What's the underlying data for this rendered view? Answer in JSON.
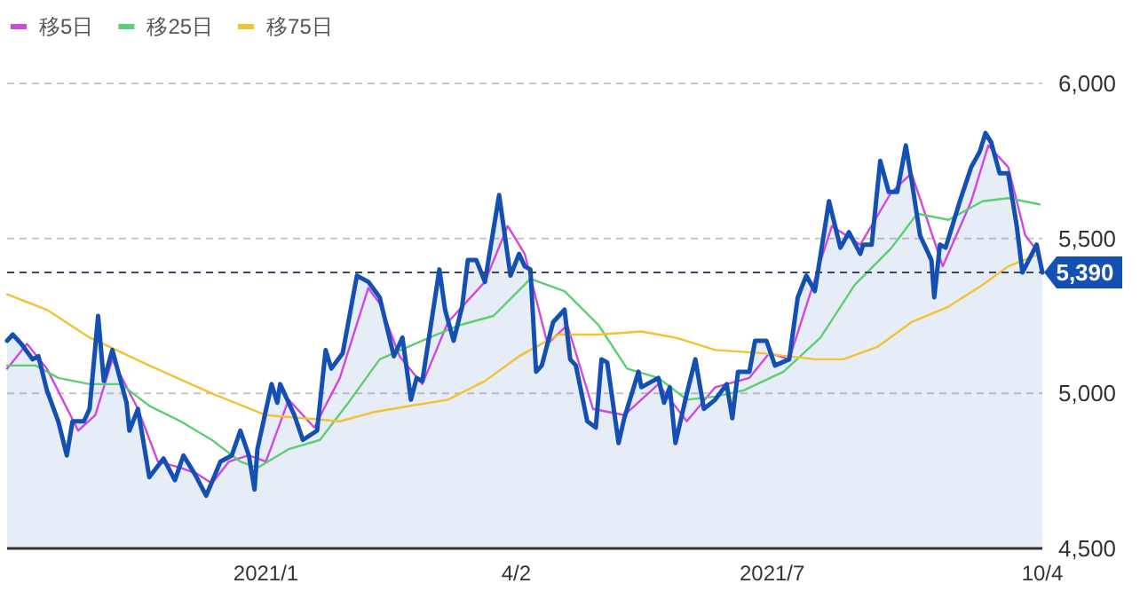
{
  "chart_data": {
    "type": "line",
    "grid": "y",
    "legend": "top left",
    "xlim": [
      "2020-10-05",
      "2021-10-04"
    ],
    "xticks": [
      {
        "value": "2021-01-04",
        "label": "2021/1"
      },
      {
        "value": "2021-04-02",
        "label": "4/2"
      },
      {
        "value": "2021-07-01",
        "label": "2021/7"
      },
      {
        "value": "2021-10-04",
        "label": "10/4"
      }
    ],
    "ylim": [
      4500,
      6000
    ],
    "yticks": [
      {
        "value": 4500,
        "label": "4,500"
      },
      {
        "value": 5000,
        "label": "5,000"
      },
      {
        "value": 5500,
        "label": "5,500"
      },
      {
        "value": 6000,
        "label": "6,000"
      }
    ],
    "ref_lines": [
      {
        "axis": "y",
        "value": 5390,
        "label": "5,390",
        "color": "#3a4660",
        "line_style": "dashed"
      }
    ],
    "series": [
      {
        "type": "area",
        "color": "#1450b4",
        "x": [
          "2020-10-05",
          "2020-10-07",
          "2020-10-10",
          "2020-10-14",
          "2020-10-16",
          "2020-10-19",
          "2020-10-23",
          "2020-10-26",
          "2020-10-28",
          "2020-11-01",
          "2020-11-03",
          "2020-11-06",
          "2020-11-08",
          "2020-11-11",
          "2020-11-16",
          "2020-11-17",
          "2020-11-20",
          "2020-11-24",
          "2020-11-29",
          "2020-12-03",
          "2020-12-06",
          "2020-12-10",
          "2020-12-14",
          "2020-12-19",
          "2020-12-23",
          "2020-12-26",
          "2020-12-29",
          "2020-12-31",
          "2021-01-01",
          "2021-01-06",
          "2021-01-08",
          "2021-01-09",
          "2021-01-14",
          "2021-01-17",
          "2021-01-22",
          "2021-01-25",
          "2021-01-27",
          "2021-01-31",
          "2021-02-05",
          "2021-02-09",
          "2021-02-13",
          "2021-02-18",
          "2021-02-21",
          "2021-02-24",
          "2021-02-26",
          "2021-02-28",
          "2021-03-06",
          "2021-03-08",
          "2021-03-11",
          "2021-03-14",
          "2021-03-16",
          "2021-03-19",
          "2021-03-22",
          "2021-03-27",
          "2021-03-31",
          "2021-04-03",
          "2021-04-05",
          "2021-04-07",
          "2021-04-09",
          "2021-04-11",
          "2021-04-15",
          "2021-04-19",
          "2021-04-21",
          "2021-04-23",
          "2021-04-27",
          "2021-04-30",
          "2021-05-02",
          "2021-05-04",
          "2021-05-08",
          "2021-05-10",
          "2021-05-15",
          "2021-05-16",
          "2021-05-22",
          "2021-05-24",
          "2021-05-26",
          "2021-05-28",
          "2021-06-01",
          "2021-06-04",
          "2021-06-07",
          "2021-06-11",
          "2021-06-15",
          "2021-06-17",
          "2021-06-19",
          "2021-06-23",
          "2021-06-25",
          "2021-06-29",
          "2021-07-02",
          "2021-07-07",
          "2021-07-10",
          "2021-07-13",
          "2021-07-16",
          "2021-07-21",
          "2021-07-25",
          "2021-07-28",
          "2021-08-01",
          "2021-08-02",
          "2021-08-05",
          "2021-08-08",
          "2021-08-11",
          "2021-08-14",
          "2021-08-17",
          "2021-08-19",
          "2021-08-22",
          "2021-08-26",
          "2021-08-27",
          "2021-08-29",
          "2021-08-31",
          "2021-09-05",
          "2021-09-09",
          "2021-09-12",
          "2021-09-14",
          "2021-09-16",
          "2021-09-19",
          "2021-09-22",
          "2021-09-25",
          "2021-09-27",
          "2021-10-02",
          "2021-10-04"
        ],
        "values": [
          5170,
          5190,
          5160,
          5110,
          5120,
          5010,
          4910,
          4800,
          4910,
          4910,
          4950,
          5250,
          5040,
          5140,
          4970,
          4880,
          4950,
          4730,
          4790,
          4720,
          4800,
          4740,
          4670,
          4780,
          4800,
          4880,
          4800,
          4690,
          4820,
          5030,
          4970,
          5030,
          4930,
          4850,
          4880,
          5140,
          5080,
          5130,
          5380,
          5360,
          5310,
          5120,
          5180,
          4980,
          5050,
          5040,
          5400,
          5270,
          5170,
          5280,
          5430,
          5430,
          5360,
          5640,
          5380,
          5450,
          5410,
          5400,
          5070,
          5090,
          5230,
          5270,
          5110,
          5090,
          4910,
          4890,
          5110,
          5100,
          4840,
          4920,
          5070,
          5020,
          5050,
          4970,
          5020,
          4840,
          5000,
          5110,
          4950,
          4980,
          5030,
          4920,
          5070,
          5070,
          5170,
          5170,
          5090,
          5110,
          5310,
          5380,
          5330,
          5620,
          5470,
          5520,
          5450,
          5480,
          5480,
          5750,
          5650,
          5650,
          5800,
          5690,
          5510,
          5430,
          5310,
          5480,
          5470,
          5620,
          5730,
          5780,
          5840,
          5810,
          5710,
          5710,
          5540,
          5390,
          5480,
          5390
        ]
      },
      {
        "type": "line",
        "name": "移5日",
        "color": "#d048e0",
        "x": [
          "2020-10-05",
          "2020-10-12",
          "2020-10-19",
          "2020-10-30",
          "2020-11-05",
          "2020-11-11",
          "2020-11-20",
          "2020-11-27",
          "2020-12-05",
          "2020-12-11",
          "2020-12-16",
          "2020-12-22",
          "2020-12-29",
          "2021-01-04",
          "2021-01-12",
          "2021-01-21",
          "2021-01-30",
          "2021-02-09",
          "2021-02-13",
          "2021-02-20",
          "2021-02-28",
          "2021-03-09",
          "2021-03-22",
          "2021-03-30",
          "2021-04-05",
          "2021-04-13",
          "2021-04-20",
          "2021-04-29",
          "2021-05-10",
          "2021-05-22",
          "2021-06-01",
          "2021-06-11",
          "2021-06-23",
          "2021-06-30",
          "2021-07-07",
          "2021-07-22",
          "2021-08-01",
          "2021-08-12",
          "2021-08-19",
          "2021-08-30",
          "2021-09-09",
          "2021-09-15",
          "2021-09-22",
          "2021-09-28",
          "2021-10-03"
        ],
        "values": [
          5080,
          5160,
          5080,
          4880,
          4930,
          5110,
          4950,
          4780,
          4760,
          4740,
          4710,
          4780,
          4800,
          4780,
          4980,
          4890,
          5050,
          5340,
          5290,
          5120,
          5030,
          5230,
          5360,
          5540,
          5450,
          5160,
          5220,
          4950,
          4930,
          5030,
          4910,
          5020,
          5050,
          5130,
          5110,
          5540,
          5480,
          5650,
          5710,
          5410,
          5620,
          5800,
          5730,
          5510,
          5450
        ]
      },
      {
        "type": "line",
        "name": "移25日",
        "color": "#5ccf72",
        "x": [
          "2020-10-05",
          "2020-10-15",
          "2020-10-23",
          "2020-11-03",
          "2020-11-14",
          "2020-11-24",
          "2020-12-05",
          "2020-12-16",
          "2020-12-26",
          "2021-01-01",
          "2021-01-12",
          "2021-01-23",
          "2021-02-02",
          "2021-02-13",
          "2021-02-28",
          "2021-03-13",
          "2021-03-25",
          "2021-04-07",
          "2021-04-19",
          "2021-05-01",
          "2021-05-11",
          "2021-05-22",
          "2021-06-01",
          "2021-06-11",
          "2021-06-21",
          "2021-07-05",
          "2021-07-18",
          "2021-07-30",
          "2021-08-12",
          "2021-08-21",
          "2021-09-01",
          "2021-09-13",
          "2021-09-22",
          "2021-10-03"
        ],
        "values": [
          5090,
          5090,
          5050,
          5030,
          5030,
          4960,
          4910,
          4850,
          4780,
          4760,
          4820,
          4850,
          4970,
          5110,
          5170,
          5220,
          5250,
          5370,
          5330,
          5220,
          5080,
          5050,
          4980,
          4990,
          5010,
          5070,
          5180,
          5350,
          5470,
          5580,
          5560,
          5620,
          5630,
          5610
        ]
      },
      {
        "type": "line",
        "name": "移75日",
        "color": "#f2c232",
        "x": [
          "2020-10-05",
          "2020-10-19",
          "2020-11-03",
          "2020-11-24",
          "2020-12-16",
          "2021-01-04",
          "2021-01-17",
          "2021-01-30",
          "2021-02-11",
          "2021-02-24",
          "2021-03-09",
          "2021-03-22",
          "2021-04-03",
          "2021-04-17",
          "2021-05-01",
          "2021-05-16",
          "2021-05-28",
          "2021-06-11",
          "2021-06-27",
          "2021-07-16",
          "2021-07-26",
          "2021-08-07",
          "2021-08-19",
          "2021-09-01",
          "2021-09-13",
          "2021-09-22",
          "2021-10-03"
        ],
        "values": [
          5320,
          5270,
          5180,
          5090,
          5000,
          4930,
          4920,
          4910,
          4940,
          4960,
          4980,
          5040,
          5120,
          5190,
          5190,
          5200,
          5180,
          5140,
          5130,
          5110,
          5110,
          5150,
          5230,
          5280,
          5350,
          5410,
          5450
        ]
      }
    ]
  }
}
